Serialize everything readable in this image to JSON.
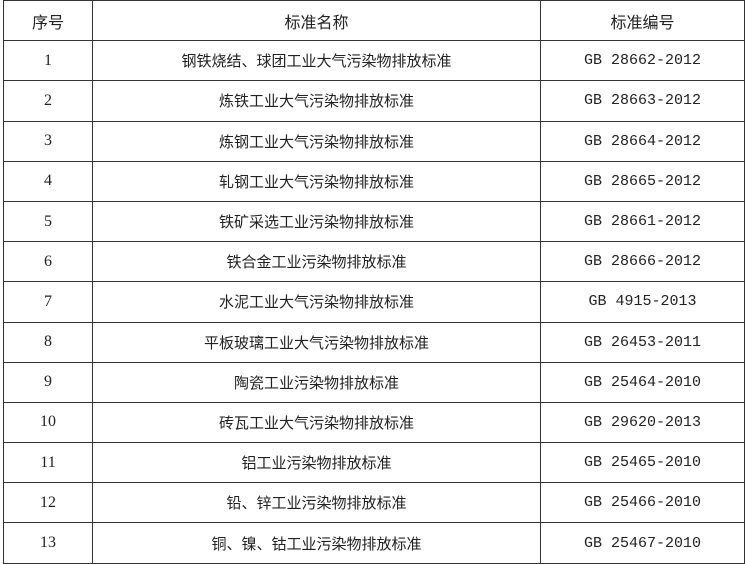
{
  "table": {
    "headers": [
      "序号",
      "标准名称",
      "标准编号"
    ],
    "rows": [
      {
        "no": "1",
        "name": "钢铁烧结、球团工业大气污染物排放标准",
        "code": "GB 28662-2012"
      },
      {
        "no": "2",
        "name": "炼铁工业大气污染物排放标准",
        "code": "GB 28663-2012"
      },
      {
        "no": "3",
        "name": "炼钢工业大气污染物排放标准",
        "code": "GB 28664-2012"
      },
      {
        "no": "4",
        "name": "轧钢工业大气污染物排放标准",
        "code": "GB 28665-2012"
      },
      {
        "no": "5",
        "name": "铁矿采选工业污染物排放标准",
        "code": "GB 28661-2012"
      },
      {
        "no": "6",
        "name": "铁合金工业污染物排放标准",
        "code": "GB 28666-2012"
      },
      {
        "no": "7",
        "name": "水泥工业大气污染物排放标准",
        "code": "GB 4915-2013"
      },
      {
        "no": "8",
        "name": "平板玻璃工业大气污染物排放标准",
        "code": "GB 26453-2011"
      },
      {
        "no": "9",
        "name": "陶瓷工业污染物排放标准",
        "code": "GB 25464-2010"
      },
      {
        "no": "10",
        "name": "砖瓦工业大气污染物排放标准",
        "code": "GB 29620-2013"
      },
      {
        "no": "11",
        "name": "铝工业污染物排放标准",
        "code": "GB 25465-2010"
      },
      {
        "no": "12",
        "name": "铅、锌工业污染物排放标准",
        "code": "GB 25466-2010"
      },
      {
        "no": "13",
        "name": "铜、镍、钴工业污染物排放标准",
        "code": "GB 25467-2010"
      }
    ]
  }
}
